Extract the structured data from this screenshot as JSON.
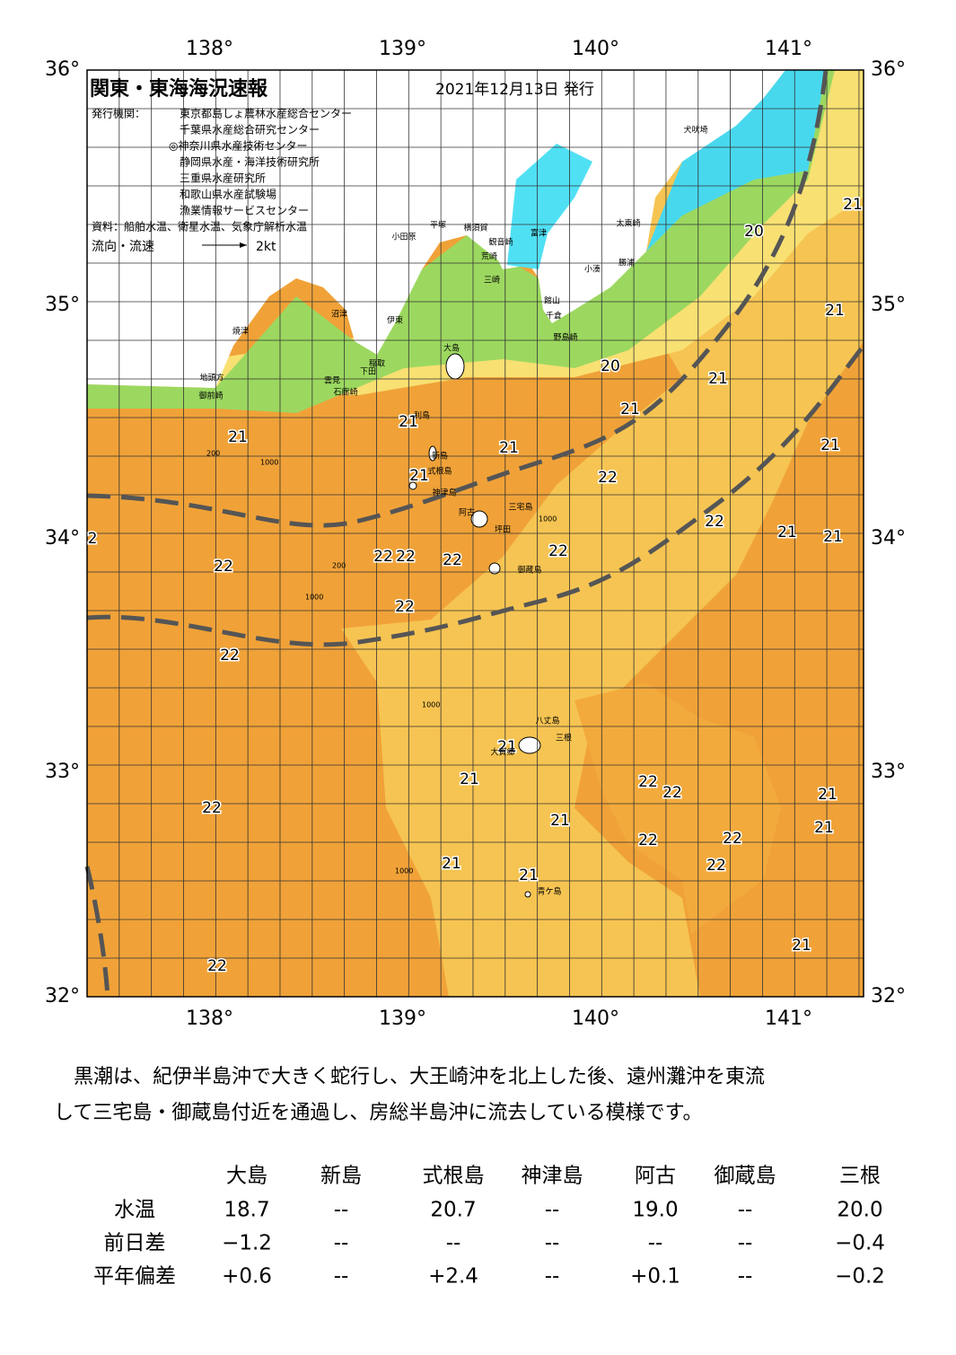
{
  "header": {
    "title": "関東・東海海況速報",
    "date": "2021年12月13日 発行"
  },
  "issuers": {
    "label": "発行機関：",
    "names": [
      "東京都島しょ農林水産総合センター",
      "千葉県水産総合研究センター",
      "◎神奈川県水産技術センター",
      "静岡県水産・海洋技術研究所",
      "三重県水産研究所",
      "和歌山県水産試験場",
      "漁業情報サービスセンター"
    ]
  },
  "source": "資料：船舶水温、衛星水温、気象庁解析水温",
  "legend": {
    "label": "流向・流速",
    "scale": "2kt"
  },
  "axes": {
    "lon": [
      "138°",
      "139°",
      "140°",
      "141°"
    ],
    "lat": [
      "36°",
      "35°",
      "34°",
      "33°",
      "32°"
    ]
  },
  "temperature_labels": [
    "21",
    "20",
    "21",
    "20",
    "21",
    "21",
    "21",
    "21",
    "21",
    "21",
    "21",
    "22",
    "22",
    "21",
    "21",
    "2",
    "22",
    "22",
    "22",
    "22",
    "22",
    "22",
    "22",
    "21",
    "21",
    "22",
    "22",
    "21",
    "22",
    "21",
    "21",
    "22",
    "22",
    "21",
    "21",
    "22",
    "21",
    "22"
  ],
  "place_names": [
    "犬吠埼",
    "太東崎",
    "小湊",
    "勝浦",
    "館山",
    "千倉",
    "野島崎",
    "富津",
    "横須賀",
    "平塚",
    "観音崎",
    "小田原",
    "荒崎",
    "三崎",
    "伊東",
    "沼津",
    "稲取",
    "下田",
    "雲見",
    "石廊崎",
    "大島",
    "焼津",
    "地頭方",
    "御前崎",
    "利島",
    "新島",
    "式根島",
    "神津島",
    "阿古",
    "三宅島",
    "坪田",
    "御蔵島",
    "八丈島",
    "三根",
    "大賀郷",
    "青ケ島"
  ],
  "contour_labels": [
    "200",
    "1000",
    "1000",
    "200",
    "1000",
    "1000",
    "1000"
  ],
  "description": [
    "　黒潮は、紀伊半島沖で大きく蛇行し、大王崎沖を北上した後、遠州灘沖を東流",
    "して三宅島・御蔵島付近を通過し、房総半島沖に流去している模様です。"
  ],
  "table": {
    "columns": [
      "大島",
      "新島",
      "式根島",
      "神津島",
      "阿古",
      "御蔵島",
      "三根"
    ],
    "rows": [
      {
        "label": "水温",
        "values": [
          "18.7",
          "--",
          "20.7",
          "--",
          "19.0",
          "--",
          "20.0"
        ]
      },
      {
        "label": "前日差",
        "values": [
          "−1.2",
          "--",
          "--",
          "--",
          "--",
          "--",
          "−0.4"
        ]
      },
      {
        "label": "平年偏差",
        "values": [
          "+0.6",
          "--",
          "+2.4",
          "--",
          "+0.1",
          "--",
          "−0.2"
        ]
      }
    ]
  }
}
